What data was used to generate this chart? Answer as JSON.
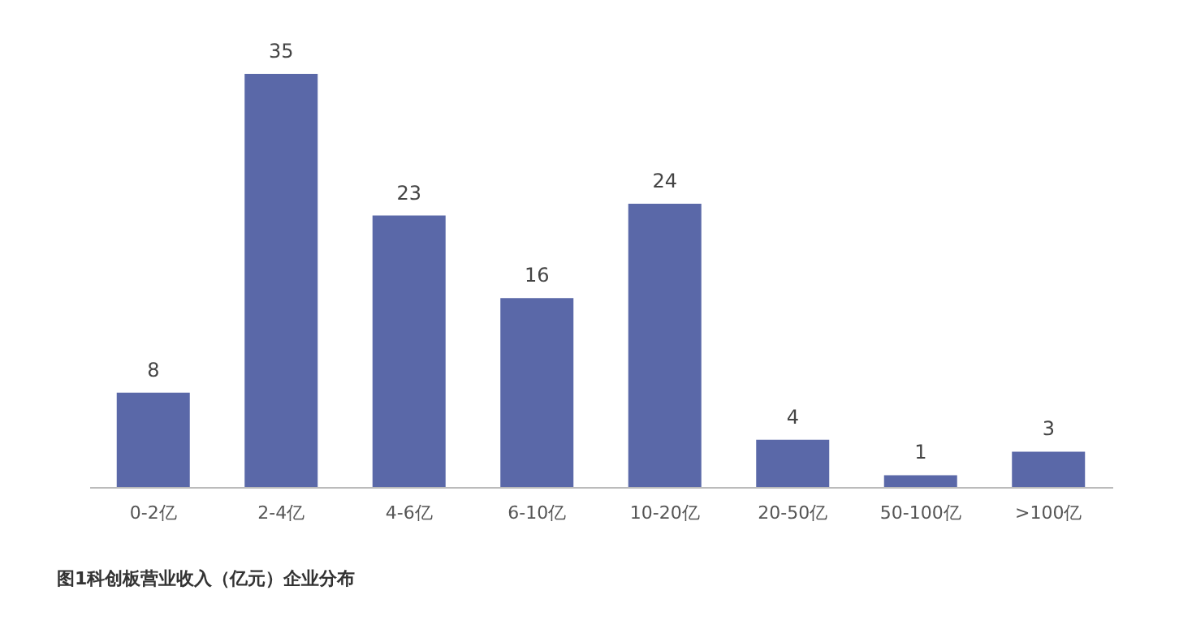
{
  "chart_data": {
    "type": "bar",
    "title": "图1科创板营业收入（亿元）企业分布",
    "categories": [
      "0-2亿",
      "2-4亿",
      "4-6亿",
      "6-10亿",
      "10-20亿",
      "20-50亿",
      "50-100亿",
      ">100亿"
    ],
    "values": [
      8,
      35,
      23,
      16,
      24,
      4,
      1,
      3
    ],
    "color": "#5a68a8",
    "data_labels": true
  }
}
